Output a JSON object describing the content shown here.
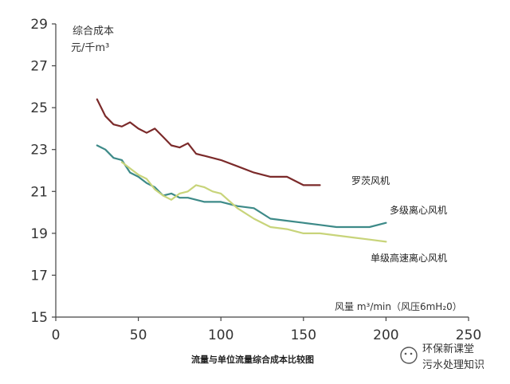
{
  "chart_data": {
    "type": "line",
    "title": "流量与单位流量综合成本比较图",
    "ylabel_line1": "综合成本",
    "ylabel_line2": "元/千m³",
    "xlabel": "风量 m³/min（风压6mH₂0）",
    "xlim": [
      0,
      250
    ],
    "ylim": [
      15,
      29
    ],
    "xticks": [
      0,
      50,
      100,
      150,
      200,
      250
    ],
    "yticks": [
      15,
      17,
      19,
      21,
      23,
      25,
      27,
      29
    ],
    "grid": false,
    "series": [
      {
        "name": "罗茨风机",
        "color": "#7b2a2a",
        "x": [
          25,
          30,
          35,
          40,
          45,
          50,
          55,
          60,
          65,
          70,
          75,
          80,
          85,
          90,
          100,
          110,
          120,
          130,
          140,
          150,
          160
        ],
        "y": [
          25.4,
          24.6,
          24.2,
          24.1,
          24.3,
          24.0,
          23.8,
          24.0,
          23.6,
          23.2,
          23.1,
          23.3,
          22.8,
          22.7,
          22.5,
          22.2,
          21.9,
          21.7,
          21.7,
          21.3,
          21.3
        ]
      },
      {
        "name": "多级离心风机",
        "color": "#3d8a88",
        "x": [
          25,
          30,
          35,
          40,
          45,
          50,
          55,
          60,
          65,
          70,
          75,
          80,
          90,
          100,
          110,
          120,
          130,
          140,
          150,
          160,
          170,
          180,
          190,
          200
        ],
        "y": [
          23.2,
          23.0,
          22.6,
          22.5,
          21.9,
          21.7,
          21.4,
          21.2,
          20.8,
          20.9,
          20.7,
          20.7,
          20.5,
          20.5,
          20.3,
          20.2,
          19.7,
          19.6,
          19.5,
          19.4,
          19.3,
          19.3,
          19.3,
          19.5
        ]
      },
      {
        "name": "单级高速离心风机",
        "color": "#c8d47a",
        "x": [
          40,
          45,
          50,
          55,
          60,
          65,
          70,
          75,
          80,
          85,
          90,
          95,
          100,
          110,
          120,
          130,
          140,
          150,
          160,
          170,
          180,
          190,
          200
        ],
        "y": [
          22.4,
          22.1,
          21.8,
          21.6,
          21.1,
          20.8,
          20.6,
          20.9,
          21.0,
          21.3,
          21.2,
          21.0,
          20.9,
          20.2,
          19.7,
          19.3,
          19.2,
          19.0,
          19.0,
          18.9,
          18.8,
          18.7,
          18.6
        ]
      }
    ]
  },
  "watermark": {
    "line1": "环保新课堂",
    "line2": "污水处理知识"
  }
}
